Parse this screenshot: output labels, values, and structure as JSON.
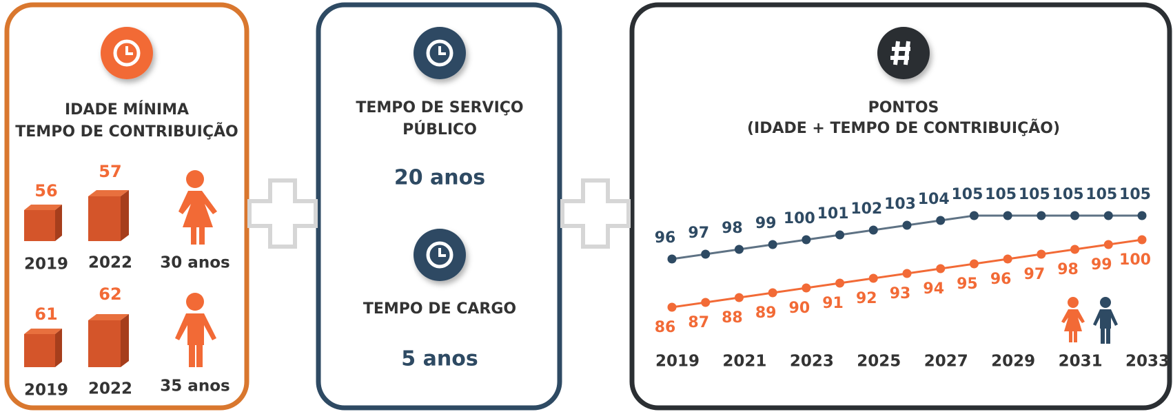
{
  "idade_minima": {
    "title_lines": [
      "IDADE MÍNIMA",
      "TEMPO DE CONTRIBUIÇÃO"
    ],
    "rows": [
      {
        "items": [
          {
            "value": 56,
            "year": "2019"
          },
          {
            "value": 57,
            "year": "2022"
          }
        ],
        "tempo": "30 anos"
      },
      {
        "items": [
          {
            "value": 61,
            "year": "2019"
          },
          {
            "value": 62,
            "year": "2022"
          }
        ],
        "tempo": "35 anos"
      }
    ]
  },
  "servico": {
    "title_lines": [
      "TEMPO DE SERVIÇO",
      "PÚBLICO"
    ],
    "value": "20 anos",
    "cargo_title": "TEMPO DE CARGO",
    "cargo_value": "5 anos"
  },
  "chart_data": {
    "type": "line",
    "title_lines": [
      "PONTOS",
      "(IDADE + TEMPO DE CONTRIBUIÇÃO)"
    ],
    "categories": [
      "2019",
      null,
      "2021",
      null,
      "2023",
      null,
      "2025",
      null,
      "2027",
      null,
      "2029",
      null,
      "2031",
      null,
      "2033"
    ],
    "series": [
      {
        "color": "#2e4a63",
        "line_color": "#5e7284",
        "label_side": "above",
        "values": [
          96,
          97,
          98,
          99,
          100,
          101,
          102,
          103,
          104,
          105,
          105,
          105,
          105,
          105,
          105
        ]
      },
      {
        "color": "#f26a36",
        "line_color": "#f26a36",
        "label_side": "below",
        "values": [
          86,
          87,
          88,
          89,
          90,
          91,
          92,
          93,
          94,
          95,
          96,
          97,
          98,
          99,
          100
        ]
      }
    ],
    "ylim": [
      84,
      107
    ]
  }
}
